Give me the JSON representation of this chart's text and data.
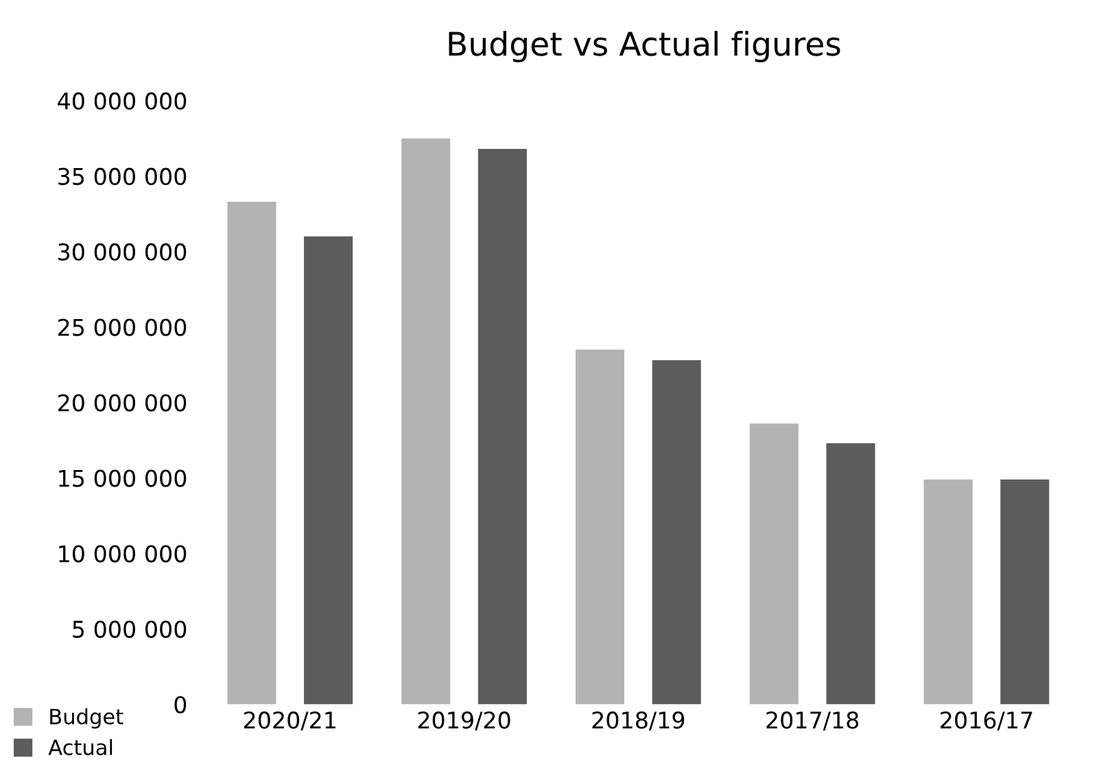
{
  "chart_data": {
    "type": "bar",
    "title": "Budget vs Actual figures",
    "categories": [
      "2020/21",
      "2019/20",
      "2018/19",
      "2017/18",
      "2016/17"
    ],
    "series": [
      {
        "name": "Budget",
        "color": "#b3b3b3",
        "values": [
          33300000,
          37500000,
          23500000,
          18600000,
          14900000
        ]
      },
      {
        "name": "Actual",
        "color": "#5c5c5c",
        "values": [
          31000000,
          36800000,
          22800000,
          17300000,
          14900000
        ]
      }
    ],
    "ylim": [
      0,
      40000000
    ],
    "yticks": [
      0,
      {
        "value": 5000000,
        "label": "5 000 000"
      },
      {
        "value": 10000000,
        "label": "10 000 000"
      },
      {
        "value": 15000000,
        "label": "15 000 000"
      },
      {
        "value": 20000000,
        "label": "20 000 000"
      },
      {
        "value": 25000000,
        "label": "25 000 000"
      },
      {
        "value": 30000000,
        "label": "30 000 000"
      },
      {
        "value": 35000000,
        "label": "35 000 000"
      },
      {
        "value": 40000000,
        "label": "40 000 000"
      }
    ],
    "grid": false,
    "legend": "bottom left"
  }
}
